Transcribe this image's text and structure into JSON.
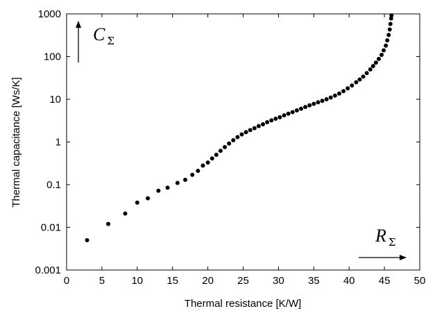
{
  "chart_data": {
    "type": "scatter",
    "title": "",
    "xlabel": "Thermal resistance [K/W]",
    "ylabel": "Thermal capacitance [Ws/K]",
    "xlim": [
      0,
      50
    ],
    "ylim": [
      0.001,
      1000
    ],
    "yscale": "log",
    "grid": false,
    "x_ticks": [
      "0",
      "5",
      "10",
      "15",
      "20",
      "25",
      "30",
      "35",
      "40",
      "45",
      "50"
    ],
    "y_ticks": [
      "0.001",
      "0.01",
      "0.1",
      "1",
      "10",
      "100",
      "1000"
    ],
    "annotations": [
      {
        "name": "C-sigma",
        "main": "C",
        "subscript": "Σ",
        "arrow": "up"
      },
      {
        "name": "R-sigma",
        "main": "R",
        "subscript": "Σ",
        "arrow": "right"
      }
    ],
    "points": [
      [
        2.9,
        0.005
      ],
      [
        5.9,
        0.012
      ],
      [
        8.3,
        0.021
      ],
      [
        10.0,
        0.038
      ],
      [
        11.5,
        0.048
      ],
      [
        13.0,
        0.072
      ],
      [
        14.3,
        0.085
      ],
      [
        15.7,
        0.11
      ],
      [
        16.8,
        0.13
      ],
      [
        17.8,
        0.17
      ],
      [
        18.6,
        0.21
      ],
      [
        19.3,
        0.28
      ],
      [
        20.0,
        0.33
      ],
      [
        20.6,
        0.41
      ],
      [
        21.2,
        0.5
      ],
      [
        21.8,
        0.62
      ],
      [
        22.4,
        0.76
      ],
      [
        23.0,
        0.92
      ],
      [
        23.6,
        1.1
      ],
      [
        24.2,
        1.3
      ],
      [
        24.8,
        1.5
      ],
      [
        25.4,
        1.7
      ],
      [
        26.0,
        1.9
      ],
      [
        26.6,
        2.1
      ],
      [
        27.2,
        2.35
      ],
      [
        27.8,
        2.6
      ],
      [
        28.4,
        2.9
      ],
      [
        29.0,
        3.2
      ],
      [
        29.6,
        3.5
      ],
      [
        30.2,
        3.8
      ],
      [
        30.8,
        4.2
      ],
      [
        31.4,
        4.6
      ],
      [
        32.0,
        5.0
      ],
      [
        32.6,
        5.5
      ],
      [
        33.2,
        6.0
      ],
      [
        33.8,
        6.6
      ],
      [
        34.4,
        7.2
      ],
      [
        35.0,
        7.8
      ],
      [
        35.6,
        8.5
      ],
      [
        36.2,
        9.2
      ],
      [
        36.8,
        10.0
      ],
      [
        37.4,
        11.0
      ],
      [
        38.0,
        12.2
      ],
      [
        38.6,
        13.6
      ],
      [
        39.2,
        15.5
      ],
      [
        39.8,
        18.0
      ],
      [
        40.4,
        21.0
      ],
      [
        41.0,
        25.0
      ],
      [
        41.5,
        29.0
      ],
      [
        42.0,
        34.0
      ],
      [
        42.5,
        41.0
      ],
      [
        43.0,
        50.0
      ],
      [
        43.4,
        60.0
      ],
      [
        43.8,
        72.0
      ],
      [
        44.2,
        88.0
      ],
      [
        44.6,
        110.0
      ],
      [
        44.9,
        140.0
      ],
      [
        45.2,
        180.0
      ],
      [
        45.4,
        240.0
      ],
      [
        45.6,
        320.0
      ],
      [
        45.75,
        430.0
      ],
      [
        45.85,
        580.0
      ],
      [
        45.95,
        780.0
      ],
      [
        46.0,
        920.0
      ]
    ]
  }
}
